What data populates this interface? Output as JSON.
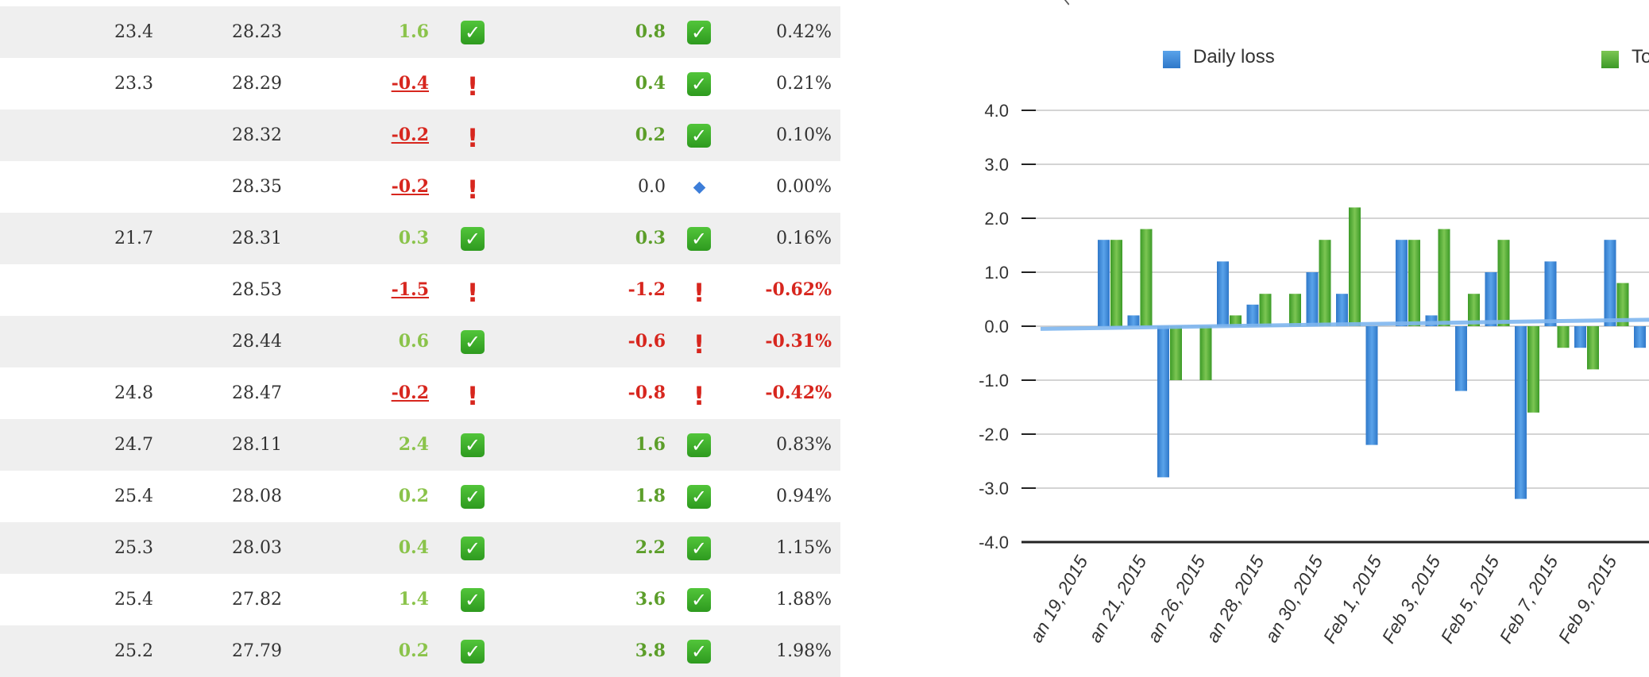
{
  "table": {
    "rows": [
      {
        "weight": "23.4",
        "trend": "28.23",
        "daily": "1.6",
        "daily_status": "ok",
        "total": "0.8",
        "total_status": "ok",
        "pct": "0.42%"
      },
      {
        "weight": "23.3",
        "trend": "28.29",
        "daily": "-0.4",
        "daily_status": "bad",
        "total": "0.4",
        "total_status": "ok",
        "pct": "0.21%"
      },
      {
        "weight": "",
        "trend": "28.32",
        "daily": "-0.2",
        "daily_status": "bad",
        "total": "0.2",
        "total_status": "ok",
        "pct": "0.10%"
      },
      {
        "weight": "",
        "trend": "28.35",
        "daily": "-0.2",
        "daily_status": "bad",
        "total": "0.0",
        "total_status": "neutral",
        "pct": "0.00%"
      },
      {
        "weight": "21.7",
        "trend": "28.31",
        "daily": "0.3",
        "daily_status": "ok",
        "total": "0.3",
        "total_status": "ok",
        "pct": "0.16%"
      },
      {
        "weight": "",
        "trend": "28.53",
        "daily": "-1.5",
        "daily_status": "bad",
        "total": "-1.2",
        "total_status": "bad",
        "pct": "-0.62%"
      },
      {
        "weight": "",
        "trend": "28.44",
        "daily": "0.6",
        "daily_status": "ok",
        "total": "-0.6",
        "total_status": "bad",
        "pct": "-0.31%"
      },
      {
        "weight": "24.8",
        "trend": "28.47",
        "daily": "-0.2",
        "daily_status": "bad",
        "total": "-0.8",
        "total_status": "bad",
        "pct": "-0.42%"
      },
      {
        "weight": "24.7",
        "trend": "28.11",
        "daily": "2.4",
        "daily_status": "ok",
        "total": "1.6",
        "total_status": "ok",
        "pct": "0.83%"
      },
      {
        "weight": "25.4",
        "trend": "28.08",
        "daily": "0.2",
        "daily_status": "ok",
        "total": "1.8",
        "total_status": "ok",
        "pct": "0.94%"
      },
      {
        "weight": "25.3",
        "trend": "28.03",
        "daily": "0.4",
        "daily_status": "ok",
        "total": "2.2",
        "total_status": "ok",
        "pct": "1.15%"
      },
      {
        "weight": "25.4",
        "trend": "27.82",
        "daily": "1.4",
        "daily_status": "ok",
        "total": "3.6",
        "total_status": "ok",
        "pct": "1.88%"
      },
      {
        "weight": "25.2",
        "trend": "27.79",
        "daily": "0.2",
        "daily_status": "ok",
        "total": "3.8",
        "total_status": "ok",
        "pct": "1.98%"
      }
    ]
  },
  "colors": {
    "shade": "#efefef",
    "light_green": "#8ac34a",
    "green": "#5c9e2a",
    "red": "#d7261e",
    "blue_bar": "#3f8fe0",
    "green_bar": "#5fb43a",
    "trend_line": "#7fb6ef"
  },
  "icons": {
    "ok": "check-icon",
    "bad": "exclamation-icon",
    "neutral": "diamond-icon"
  },
  "chart_data": {
    "type": "bar",
    "y_ticks": [
      "4.0",
      "3.0",
      "2.0",
      "1.0",
      "0.0",
      "-1.0",
      "-2.0",
      "-3.0",
      "-4.0"
    ],
    "ylim": [
      -4,
      4
    ],
    "grid": true,
    "legend": [
      "Daily loss",
      "To"
    ],
    "x_labels": [
      "an 19, 2015",
      "an 21, 2015",
      "an 26, 2015",
      "an 28, 2015",
      "an 30, 2015",
      "Feb 1, 2015",
      "Feb 3, 2015",
      "Feb 5, 2015",
      "Feb 7, 2015",
      "Feb 9, 2015"
    ],
    "series": [
      {
        "name": "Daily loss",
        "values": [
          1.6,
          0.2,
          -2.8,
          null,
          1.2,
          0.4,
          null,
          1.0,
          0.6,
          -2.2,
          1.6,
          0.2,
          -1.2,
          1.0,
          -3.2,
          1.2,
          -0.4,
          1.6,
          -0.4
        ]
      },
      {
        "name": "To",
        "values": [
          1.6,
          1.8,
          -1.0,
          -1.0,
          0.2,
          0.6,
          0.6,
          1.6,
          2.2,
          null,
          1.6,
          1.8,
          0.6,
          1.6,
          -1.6,
          -0.4,
          -0.8,
          0.8,
          null
        ]
      }
    ],
    "trend": {
      "start": -0.05,
      "end": 0.12
    }
  }
}
